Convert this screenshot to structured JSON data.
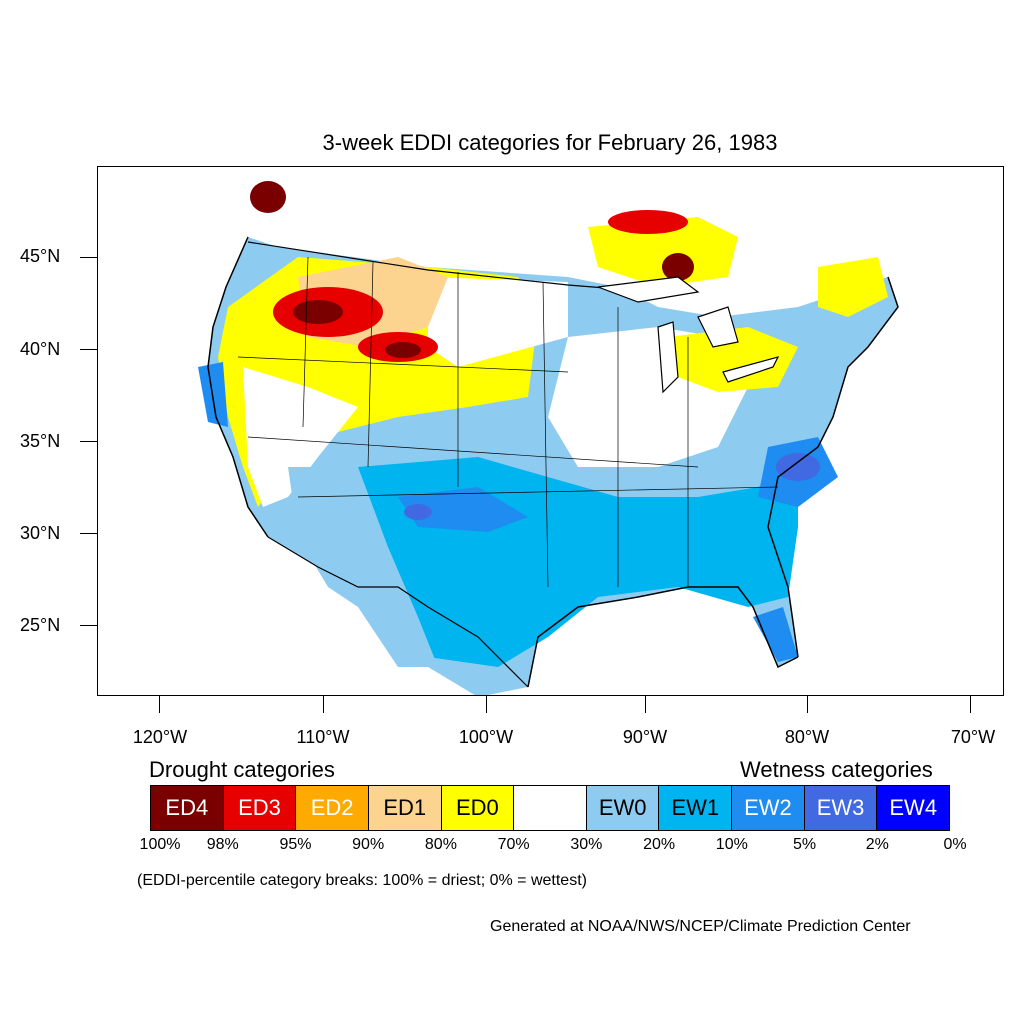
{
  "title": "3-week EDDI categories for February 26, 1983",
  "y_labels": [
    "45°N",
    "40°N",
    "35°N",
    "30°N",
    "25°N"
  ],
  "x_labels": [
    "120°W",
    "110°W",
    "100°W",
    "90°W",
    "80°W",
    "70°W"
  ],
  "legend": {
    "drought_heading": "Drought categories",
    "wetness_heading": "Wetness categories",
    "categories": [
      {
        "label": "ED4",
        "color": "#7a0000",
        "text_color": "#ffffff"
      },
      {
        "label": "ED3",
        "color": "#e60000",
        "text_color": "#ffffff"
      },
      {
        "label": "ED2",
        "color": "#ffaa00",
        "text_color": "#ffffff"
      },
      {
        "label": "ED1",
        "color": "#fcd38f",
        "text_color": "#000000"
      },
      {
        "label": "ED0",
        "color": "#ffff00",
        "text_color": "#000000"
      },
      {
        "label": "",
        "color": "#ffffff",
        "text_color": "#000000"
      },
      {
        "label": "EW0",
        "color": "#8dccf0",
        "text_color": "#000000"
      },
      {
        "label": "EW1",
        "color": "#00b4f0",
        "text_color": "#000000"
      },
      {
        "label": "EW2",
        "color": "#1e8cf0",
        "text_color": "#ffffff"
      },
      {
        "label": "EW3",
        "color": "#4169e1",
        "text_color": "#ffffff"
      },
      {
        "label": "EW4",
        "color": "#0000ff",
        "text_color": "#ffffff"
      }
    ],
    "breaks": [
      "100%",
      "98%",
      "95%",
      "90%",
      "80%",
      "70%",
      "30%",
      "20%",
      "10%",
      "5%",
      "2%",
      "0%"
    ]
  },
  "note": "(EDDI-percentile category breaks: 100% = driest; 0% = wettest)",
  "credit": "Generated at NOAA/NWS/NCEP/Climate Prediction Center"
}
